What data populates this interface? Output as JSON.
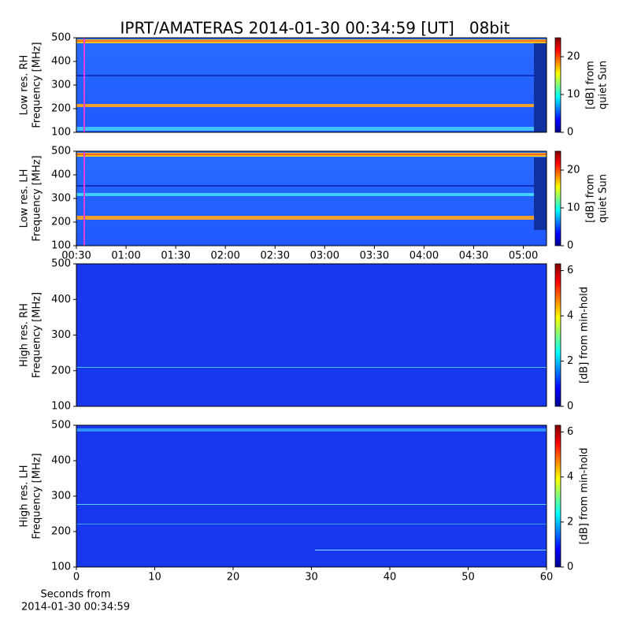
{
  "chart_data": [
    {
      "type": "heatmap",
      "title": "IPRT/AMATERAS 2014-01-30 00:34:59 [UT]   08bit",
      "ylabel": [
        "Low res. RH",
        "Frequency [MHz]"
      ],
      "xlim": [
        30,
        314
      ],
      "ylim": [
        100,
        500
      ],
      "yticks": [
        100,
        200,
        300,
        400,
        500
      ],
      "colorbar": {
        "label": [
          "[dB] from",
          "quiet Sun"
        ],
        "lim": [
          0,
          25
        ],
        "ticks": [
          0,
          10,
          20
        ]
      }
    },
    {
      "type": "heatmap",
      "ylabel": [
        "Low res. LH",
        "Frequency [MHz]"
      ],
      "xlim": [
        30,
        314
      ],
      "xticks": [
        {
          "value": 30,
          "label": "00:30"
        },
        {
          "value": 60,
          "label": "01:00"
        },
        {
          "value": 90,
          "label": "01:30"
        },
        {
          "value": 120,
          "label": "02:00"
        },
        {
          "value": 150,
          "label": "02:30"
        },
        {
          "value": 180,
          "label": "03:00"
        },
        {
          "value": 210,
          "label": "03:30"
        },
        {
          "value": 240,
          "label": "04:00"
        },
        {
          "value": 270,
          "label": "04:30"
        },
        {
          "value": 300,
          "label": "05:00"
        }
      ],
      "ylim": [
        100,
        500
      ],
      "yticks": [
        100,
        200,
        300,
        400,
        500
      ],
      "colorbar": {
        "label": [
          "[dB] from",
          "quiet Sun"
        ],
        "lim": [
          0,
          25
        ],
        "ticks": [
          0,
          10,
          20
        ]
      }
    },
    {
      "type": "heatmap",
      "ylabel": [
        "High res. RH",
        "Frequency [MHz]"
      ],
      "xlim": [
        0,
        60
      ],
      "ylim": [
        100,
        500
      ],
      "yticks": [
        100,
        200,
        300,
        400,
        500
      ],
      "colorbar": {
        "label": [
          "[dB] from min-hold"
        ],
        "lim": [
          0,
          6.3
        ],
        "ticks": [
          0,
          2,
          4,
          6
        ]
      }
    },
    {
      "type": "heatmap",
      "ylabel": [
        "High res. LH",
        "Frequency [MHz]"
      ],
      "xlim": [
        0,
        60
      ],
      "xticks": [
        0,
        10,
        20,
        30,
        40,
        50,
        60
      ],
      "xlabel": [
        "Seconds from",
        "2014-01-30 00:34:59"
      ],
      "ylim": [
        100,
        500
      ],
      "yticks": [
        100,
        200,
        300,
        400,
        500
      ],
      "colorbar": {
        "label": [
          "[dB] from min-hold"
        ],
        "lim": [
          0,
          6.3
        ],
        "ticks": [
          0,
          2,
          4,
          6
        ]
      }
    }
  ]
}
